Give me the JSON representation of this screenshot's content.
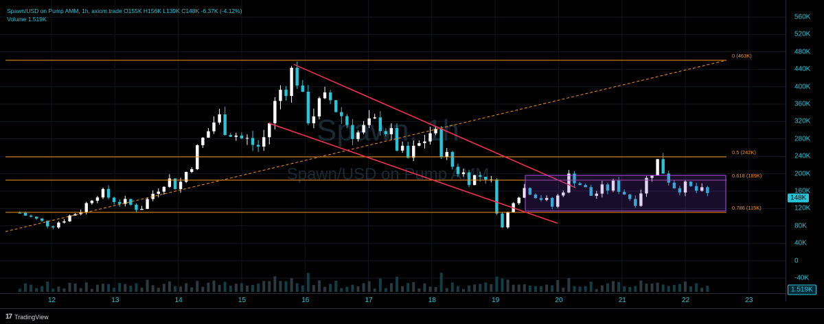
{
  "legend": {
    "symbol_line": "Spawn/USD on Pump AMM, 1h, axiom.trade  O155K  H156K  L139K  C148K  -6.37K (-4.12%)",
    "volume_line": "Volume  1.519K"
  },
  "watermark": {
    "symbol": "Spawn, 1h",
    "name": "Spawn/USD on Pump AMM"
  },
  "price_axis": {
    "ticks": [
      "560K",
      "520K",
      "480K",
      "440K",
      "400K",
      "360K",
      "320K",
      "280K",
      "240K",
      "200K",
      "160K",
      "120K",
      "80K",
      "40K",
      "0",
      "-40K"
    ],
    "current_price_badge": "148K",
    "volume_badge": "1.519K"
  },
  "time_axis": {
    "ticks": [
      "12",
      "13",
      "14",
      "15",
      "16",
      "17",
      "18",
      "19",
      "20",
      "21",
      "22",
      "23"
    ]
  },
  "fib_levels": [
    {
      "label": "0 (463K)",
      "price": 463000
    },
    {
      "label": "0.5 (242K)",
      "price": 242000
    },
    {
      "label": "0.618 (189K)",
      "price": 189000
    },
    {
      "label": "0.786 (115K)",
      "price": 115000
    }
  ],
  "colors": {
    "up": "#ffffff",
    "down": "#26c6da",
    "fib": "#f7931a",
    "channel": "#ff2e55",
    "range_box": "#8e3bd6",
    "accent": "#26c6da"
  },
  "footer": {
    "brand": "TradingView"
  },
  "chart_data": {
    "type": "candlestick",
    "title": "Spawn/USD on Pump AMM, 1h, axiom.trade",
    "ohlc_last": {
      "open": 155000,
      "high": 156000,
      "low": 139000,
      "close": 148000,
      "change": -6370,
      "change_pct": -4.12
    },
    "volume_last": 1519,
    "ylim": [
      -40000,
      560000
    ],
    "x_days": [
      "12",
      "13",
      "14",
      "15",
      "16",
      "17",
      "18",
      "19",
      "20",
      "21",
      "22",
      "23"
    ],
    "close_path": [
      {
        "day": 11.5,
        "close": 110000
      },
      {
        "day": 12.0,
        "close": 80000
      },
      {
        "day": 12.5,
        "close": 120000
      },
      {
        "day": 12.7,
        "close": 160000
      },
      {
        "day": 13.0,
        "close": 140000
      },
      {
        "day": 13.4,
        "close": 120000
      },
      {
        "day": 13.8,
        "close": 190000
      },
      {
        "day": 14.0,
        "close": 170000
      },
      {
        "day": 14.4,
        "close": 280000
      },
      {
        "day": 14.6,
        "close": 330000
      },
      {
        "day": 15.0,
        "close": 280000
      },
      {
        "day": 15.3,
        "close": 260000
      },
      {
        "day": 15.6,
        "close": 390000
      },
      {
        "day": 15.85,
        "close": 445000
      },
      {
        "day": 16.0,
        "close": 330000
      },
      {
        "day": 16.4,
        "close": 370000
      },
      {
        "day": 16.8,
        "close": 290000
      },
      {
        "day": 17.2,
        "close": 320000
      },
      {
        "day": 17.6,
        "close": 230000
      },
      {
        "day": 18.0,
        "close": 300000
      },
      {
        "day": 18.3,
        "close": 220000
      },
      {
        "day": 18.6,
        "close": 190000
      },
      {
        "day": 18.9,
        "close": 200000
      },
      {
        "day": 19.1,
        "close": 70000
      },
      {
        "day": 19.3,
        "close": 150000
      },
      {
        "day": 19.5,
        "close": 170000
      },
      {
        "day": 19.9,
        "close": 125000
      },
      {
        "day": 20.2,
        "close": 200000
      },
      {
        "day": 20.5,
        "close": 150000
      },
      {
        "day": 20.9,
        "close": 175000
      },
      {
        "day": 21.2,
        "close": 135000
      },
      {
        "day": 21.55,
        "close": 230000
      },
      {
        "day": 21.8,
        "close": 175000
      },
      {
        "day": 22.1,
        "close": 165000
      },
      {
        "day": 22.4,
        "close": 148000
      }
    ]
  }
}
